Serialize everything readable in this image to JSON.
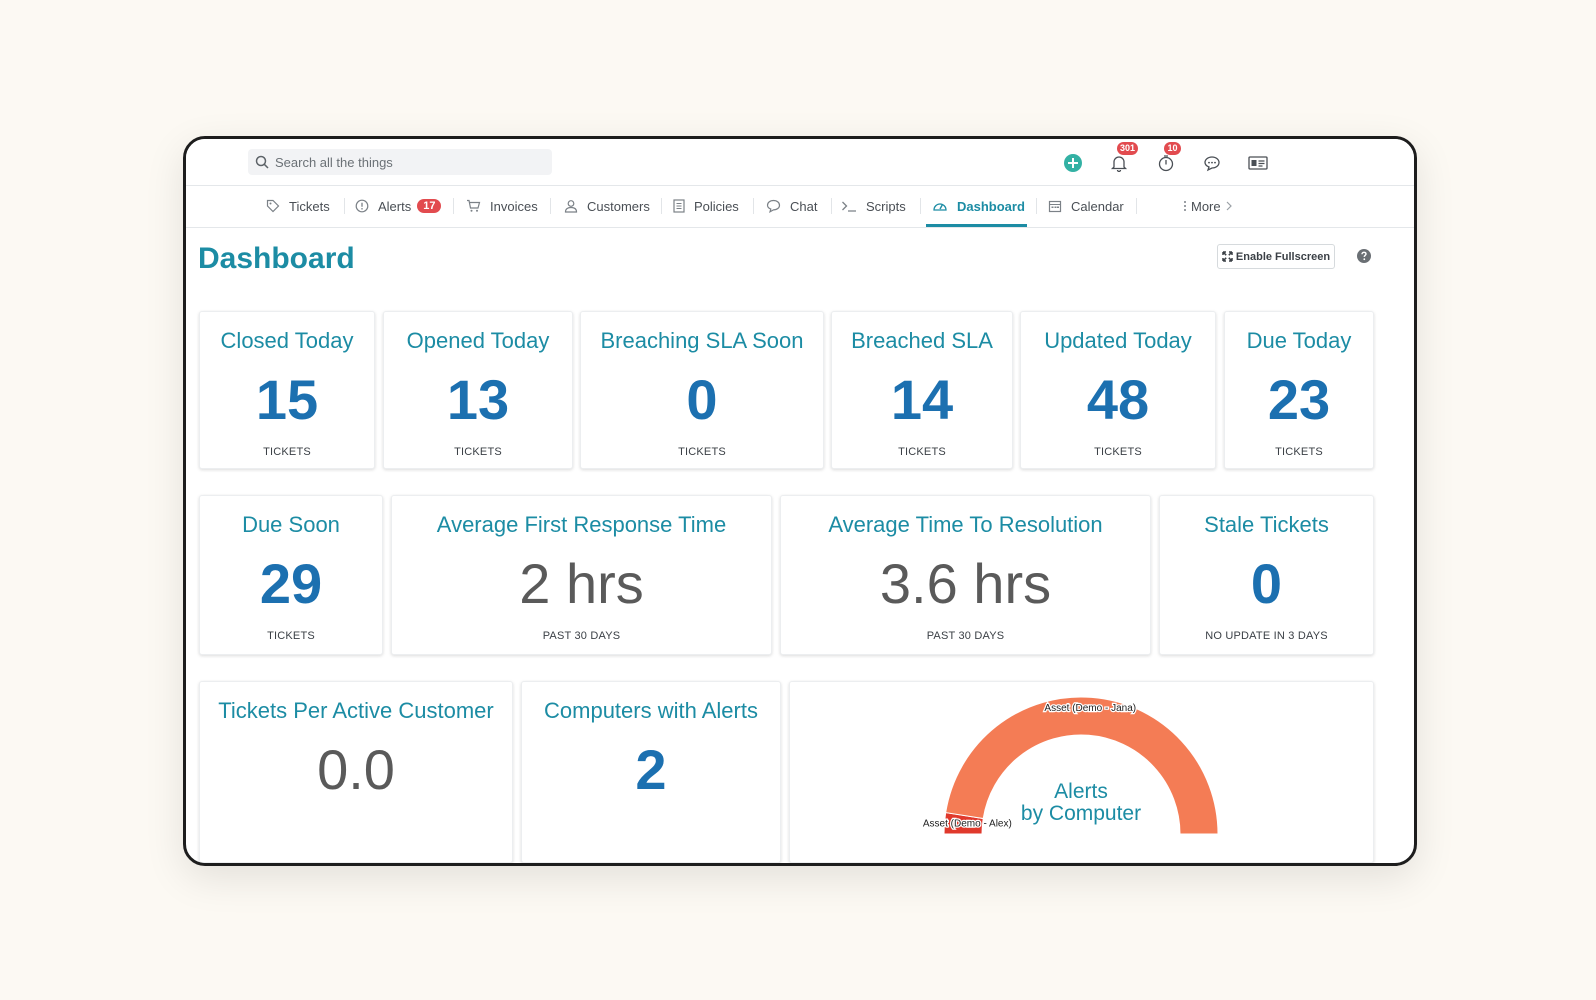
{
  "search": {
    "placeholder": "Search all the things"
  },
  "topbar": {
    "notifications_count": "301",
    "timer_count": "10"
  },
  "nav": {
    "items": [
      {
        "label": "Tickets",
        "icon": "tag-icon"
      },
      {
        "label": "Alerts",
        "icon": "alert-circle-icon",
        "badge": "17"
      },
      {
        "label": "Invoices",
        "icon": "cart-icon"
      },
      {
        "label": "Customers",
        "icon": "user-icon"
      },
      {
        "label": "Policies",
        "icon": "document-icon"
      },
      {
        "label": "Chat",
        "icon": "chat-bubble-icon"
      },
      {
        "label": "Scripts",
        "icon": "terminal-icon"
      },
      {
        "label": "Dashboard",
        "icon": "gauge-icon",
        "active": true
      },
      {
        "label": "Calendar",
        "icon": "calendar-icon"
      }
    ],
    "more_label": "More"
  },
  "page": {
    "title": "Dashboard",
    "fullscreen_label": "Enable Fullscreen"
  },
  "cards": {
    "closed_today": {
      "title": "Closed Today",
      "value": "15",
      "sub": "TICKETS"
    },
    "opened_today": {
      "title": "Opened Today",
      "value": "13",
      "sub": "TICKETS"
    },
    "breaching_sla": {
      "title": "Breaching SLA Soon",
      "value": "0",
      "sub": "TICKETS"
    },
    "breached_sla": {
      "title": "Breached SLA",
      "value": "14",
      "sub": "TICKETS"
    },
    "updated_today": {
      "title": "Updated Today",
      "value": "48",
      "sub": "TICKETS"
    },
    "due_today": {
      "title": "Due Today",
      "value": "23",
      "sub": "TICKETS"
    },
    "due_soon": {
      "title": "Due Soon",
      "value": "29",
      "sub": "TICKETS"
    },
    "avg_first_response": {
      "title": "Average First Response Time",
      "value": "2 hrs",
      "sub": "PAST 30 DAYS"
    },
    "avg_resolution": {
      "title": "Average Time To Resolution",
      "value": "3.6 hrs",
      "sub": "PAST 30 DAYS"
    },
    "stale_tickets": {
      "title": "Stale Tickets",
      "value": "0",
      "sub": "NO UPDATE IN 3 DAYS"
    },
    "tickets_per_customer": {
      "title": "Tickets Per Active Customer",
      "value": "0.0"
    },
    "computers_with_alerts": {
      "title": "Computers with Alerts",
      "value": "2"
    }
  },
  "colors": {
    "accent": "#1c8ca4",
    "value_blue": "#1c70b0",
    "badge_red": "#e24b4f",
    "chart_orange": "#f47c55",
    "chart_red": "#e0392c"
  },
  "chart_data": {
    "type": "pie",
    "title": "Alerts by Computer",
    "title_lines": [
      "Alerts",
      "by Computer"
    ],
    "categories": [
      "Asset (Demo - Jana)",
      "Asset (Demo - Alex)"
    ],
    "values": [
      95,
      5
    ],
    "colors": [
      "#f47c55",
      "#e0392c"
    ],
    "style": "half-donut"
  }
}
